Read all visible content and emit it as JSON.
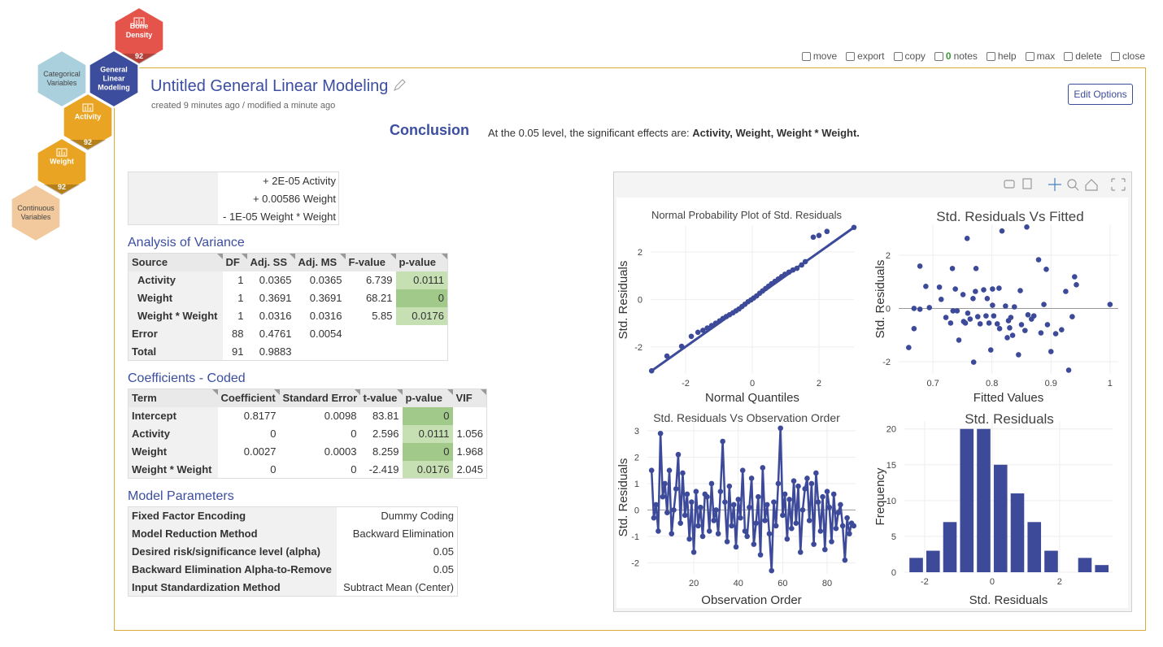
{
  "nav": {
    "hexes": [
      {
        "label": "Bone Density",
        "badge": 92,
        "color": "#e4544a"
      },
      {
        "label": "General Linear Modeling",
        "color": "#3c4d9e"
      },
      {
        "label": "Categorical Variables",
        "color": "#abd0dd"
      },
      {
        "label": "Activity",
        "badge": 92,
        "color": "#e8a422"
      },
      {
        "label": "Weight",
        "badge": 92,
        "color": "#e8a422"
      },
      {
        "label": "Continuous Variables",
        "color": "#f1c99c"
      }
    ]
  },
  "toolbar": {
    "items": [
      "move",
      "export",
      "copy",
      "notes",
      "help",
      "max",
      "delete",
      "close"
    ],
    "notes_count": 0
  },
  "header": {
    "title": "Untitled General Linear Modeling",
    "subtitle": "created 9 minutes ago / modified a minute ago",
    "button": "Edit Options"
  },
  "conclusion": {
    "heading": "Conclusion",
    "prefix": "At the",
    "level": "0.05",
    "suffix": "level, the significant effects are:",
    "effects": "Activity, Weight, Weight * Weight."
  },
  "styles": {
    "significant_color": "#c6dfb3",
    "highly_significant_color": "#a0c98a"
  },
  "equation": {
    "lines": [
      "+ 2E-05 Activity",
      "+ 0.00586 Weight",
      "- 1E-05 Weight * Weight"
    ]
  },
  "anova": {
    "title": "Analysis of Variance",
    "columns": [
      "Source",
      "DF",
      "Adj. SS",
      "Adj. MS",
      "F-value",
      "p-value"
    ],
    "rows": [
      [
        "Activity",
        "1",
        "0.0365",
        "0.0365",
        "6.739",
        "0.0111"
      ],
      [
        "Weight",
        "1",
        "0.3691",
        "0.3691",
        "68.21",
        "0"
      ],
      [
        "Weight * Weight",
        "1",
        "0.0316",
        "0.0316",
        "5.85",
        "0.0176"
      ],
      [
        "Error",
        "88",
        "0.4761",
        "0.0054",
        null,
        null
      ],
      [
        "Total",
        "91",
        "0.9883",
        null,
        null,
        null
      ]
    ]
  },
  "coefficients": {
    "title": "Coefficients - Coded",
    "columns": [
      "Term",
      "Coefficient",
      "Standard Error",
      "t-value",
      "p-value",
      "VIF"
    ],
    "rows": [
      [
        "Intercept",
        "0.8177",
        "0.0098",
        "83.81",
        "0",
        null
      ],
      [
        "Activity",
        "0",
        "0",
        "2.596",
        "0.0111",
        "1.056"
      ],
      [
        "Weight",
        "0.0027",
        "0.0003",
        "8.259",
        "0",
        "1.968"
      ],
      [
        "Weight * Weight",
        "0",
        "0",
        "-2.419",
        "0.0176",
        "2.045"
      ]
    ]
  },
  "parameters": {
    "title": "Model Parameters",
    "rows": [
      [
        "Fixed Factor Encoding",
        "Dummy Coding"
      ],
      [
        "Model Reduction Method",
        "Backward Elimination"
      ],
      [
        "Desired risk/significance level (alpha)",
        "0.05"
      ],
      [
        "Backward Elimination Alpha-to-Remove",
        "0.05"
      ],
      [
        "Input Standardization Method",
        "Subtract Mean (Center)"
      ]
    ]
  },
  "chart_data": [
    {
      "type": "scatter",
      "title": "Normal Probability Plot of Std. Residuals",
      "x_label": "Normal Quantiles",
      "y_label": "Std. Residuals",
      "color": "#3c4a99",
      "grid": true,
      "xlim": [
        -3.05,
        3.05
      ],
      "ylim": [
        -3.13,
        3.09
      ],
      "xticks": [
        -2,
        0,
        2
      ],
      "yticks": [
        -2,
        0,
        2
      ],
      "x": [
        -3.02,
        -2.56,
        -2.12,
        -1.83,
        -1.63,
        -1.48,
        -1.35,
        -1.22,
        -1.1,
        -0.98,
        -0.88,
        -0.78,
        -0.68,
        -0.58,
        -0.49,
        -0.4,
        -0.31,
        -0.22,
        -0.13,
        -0.04,
        0.04,
        0.13,
        0.22,
        0.31,
        0.4,
        0.49,
        0.58,
        0.68,
        0.78,
        0.88,
        0.98,
        1.1,
        1.22,
        1.34,
        1.48,
        1.59,
        1.83,
        2.0,
        2.24,
        3.05
      ],
      "values": [
        -3.0,
        -2.38,
        -1.97,
        -1.55,
        -1.38,
        -1.3,
        -1.2,
        -1.1,
        -1.0,
        -0.9,
        -0.8,
        -0.72,
        -0.64,
        -0.56,
        -0.48,
        -0.4,
        -0.3,
        -0.2,
        -0.1,
        -0.02,
        0.06,
        0.15,
        0.26,
        0.36,
        0.46,
        0.56,
        0.66,
        0.76,
        0.86,
        0.96,
        1.06,
        1.15,
        1.24,
        1.31,
        1.45,
        1.59,
        2.62,
        2.69,
        2.86,
        3.03
      ],
      "fit_line": {
        "x": [
          -3.02,
          3.05
        ],
        "y": [
          -3.0,
          3.03
        ]
      }
    },
    {
      "type": "scatter",
      "title": "Std. Residuals Vs Fitted",
      "x_label": "Fitted Values",
      "y_label": "Std. Residuals",
      "color": "#3c4a99",
      "grid": true,
      "zeroline": true,
      "xlim": [
        0.642,
        1.014
      ],
      "ylim": [
        -2.46,
        3.16
      ],
      "xticks": [
        0.7,
        0.8,
        0.9,
        1
      ],
      "yticks": [
        -2,
        0,
        2
      ],
      "x": [
        0.659,
        0.668,
        0.668,
        0.678,
        0.678,
        0.688,
        0.694,
        0.711,
        0.714,
        0.722,
        0.73,
        0.733,
        0.734,
        0.738,
        0.741,
        0.744,
        0.751,
        0.752,
        0.755,
        0.758,
        0.759,
        0.763,
        0.768,
        0.769,
        0.772,
        0.773,
        0.776,
        0.78,
        0.786,
        0.79,
        0.792,
        0.795,
        0.798,
        0.801,
        0.801,
        0.803,
        0.809,
        0.812,
        0.813,
        0.817,
        0.823,
        0.826,
        0.828,
        0.83,
        0.832,
        0.835,
        0.838,
        0.845,
        0.848,
        0.85,
        0.856,
        0.859,
        0.861,
        0.867,
        0.871,
        0.879,
        0.883,
        0.888,
        0.892,
        0.894,
        0.9,
        0.908,
        0.918,
        0.925,
        0.93,
        0.936,
        0.94,
        0.943,
        1.0
      ],
      "values": [
        -1.47,
        0,
        -0.76,
        1.59,
        -0.03,
        0.83,
        0.03,
        0.8,
        0.34,
        -0.34,
        -0.55,
        1.5,
        -0.09,
        0.73,
        -0.09,
        -1.19,
        0.52,
        -0.49,
        -0.55,
        2.63,
        -0.18,
        -0.4,
        0.37,
        -2.02,
        0.64,
        1.5,
        -0.31,
        -0.58,
        0.7,
        -0.28,
        0.37,
        -0.55,
        -1.56,
        0.73,
        0.12,
        -0.28,
        -0.58,
        0.76,
        -0.76,
        2.91,
        0.09,
        -1.1,
        -0.46,
        -0.73,
        -0.34,
        -1.01,
        0.06,
        -1.74,
        0.67,
        -0.61,
        -0.83,
        3.06,
        -0.24,
        -0.4,
        -0.28,
        1.83,
        -0.92,
        0.15,
        1.47,
        -0.61,
        -1.62,
        -0.95,
        -0.8,
        0.64,
        -2.32,
        -0.31,
        1.19,
        0.89,
        0.15
      ]
    },
    {
      "type": "line",
      "title": "Std. Residuals Vs Observation Order",
      "x_label": "Observation Order",
      "y_label": "Std. Residuals",
      "color": "#3c4a99",
      "grid": true,
      "zeroline": true,
      "xlim": [
        -0.9,
        92.8
      ],
      "ylim": [
        -2.42,
        3.37
      ],
      "xticks": [
        20,
        40,
        60,
        80
      ],
      "yticks": [
        -2,
        -1,
        0,
        1,
        2,
        3
      ],
      "x": [
        1,
        2,
        3,
        4,
        5,
        6,
        7,
        8,
        9,
        10,
        11,
        12,
        13,
        14,
        15,
        16,
        17,
        18,
        19,
        20,
        21,
        22,
        23,
        24,
        25,
        26,
        27,
        28,
        29,
        30,
        31,
        32,
        33,
        34,
        35,
        36,
        37,
        38,
        39,
        40,
        41,
        42,
        43,
        44,
        45,
        46,
        47,
        48,
        49,
        50,
        51,
        52,
        53,
        54,
        55,
        56,
        57,
        58,
        59,
        60,
        61,
        62,
        63,
        64,
        65,
        66,
        67,
        68,
        69,
        70,
        71,
        72,
        73,
        74,
        75,
        76,
        77,
        78,
        79,
        80,
        81,
        82,
        83,
        84,
        85,
        86,
        87,
        88,
        89,
        90,
        91,
        92
      ],
      "values": [
        1.5,
        -0.3,
        0.2,
        -0.8,
        2.9,
        0.5,
        1.0,
        -0.1,
        1.5,
        -0.9,
        0.0,
        0.8,
        2.1,
        -0.5,
        1.4,
        -0.2,
        0.6,
        -1.1,
        0.3,
        -1.6,
        0.7,
        -0.6,
        0.1,
        -1.0,
        0.6,
        0.5,
        -0.8,
        1.0,
        -0.4,
        0.0,
        -0.9,
        0.7,
        2.6,
        0.3,
        -1.2,
        0.9,
        -0.6,
        0.2,
        -1.4,
        0.4,
        -0.3,
        1.5,
        -0.8,
        -1.0,
        0.1,
        1.2,
        -1.3,
        -0.5,
        0.5,
        -1.7,
        1.6,
        -0.4,
        0.2,
        -0.9,
        -2.3,
        0.3,
        -0.6,
        1.0,
        3.1,
        -0.2,
        0.6,
        -1.1,
        0.4,
        -0.7,
        1.1,
        -0.5,
        0.9,
        -1.6,
        0.0,
        0.8,
        1.2,
        -0.4,
        1.0,
        -1.3,
        1.4,
        0.3,
        -0.8,
        0.5,
        -1.5,
        0.7,
        0.1,
        -1.2,
        0.6,
        -0.7,
        -0.1,
        0.2,
        -0.6,
        -1.9,
        -0.3,
        -0.9,
        -0.5,
        -0.6
      ]
    },
    {
      "type": "histogram",
      "title": "Std. Residuals",
      "x_label": "Std. Residuals",
      "y_label": "Frequency",
      "color": "#3c4a99",
      "grid": true,
      "xlim": [
        -2.6,
        3.57
      ],
      "ylim": [
        0,
        21.1
      ],
      "xticks": [
        -2,
        0,
        2
      ],
      "yticks": [
        0,
        5,
        10,
        15,
        20
      ],
      "bins": [
        -2.5,
        -2,
        -1.5,
        -1,
        -0.5,
        0,
        0.5,
        1,
        1.5,
        2,
        2.5,
        3,
        3.5
      ],
      "values": [
        2,
        3,
        7,
        20,
        20,
        15,
        11,
        7,
        3,
        0,
        2,
        1
      ]
    }
  ]
}
